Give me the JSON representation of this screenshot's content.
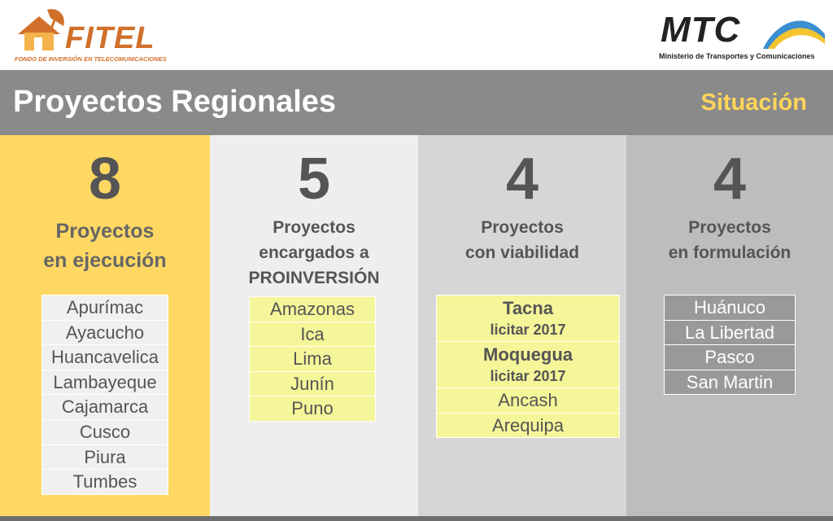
{
  "header": {
    "fitel_wordmark": "FITEL",
    "fitel_tagline": "FONDO DE INVERSIÓN EN TELECOMUNICACIONES",
    "mtc_wordmark": "MTC",
    "mtc_subtitle": "Ministerio de Transportes y Comunicaciones"
  },
  "title": "Proyectos Regionales",
  "subtitle": "Situación",
  "colors": {
    "title_band": "#8a8a8a",
    "subtitle": "#ffd55a",
    "col1_bg": "#ffd863",
    "col2_bg": "#eeeeee",
    "col3_bg": "#d6d6d6",
    "col4_bg": "#bdbdbd",
    "highlight_cell": "#f5f59a",
    "brand_orange": "#d0702a"
  },
  "columns": [
    {
      "count": "8",
      "label_lines": [
        "Proyectos",
        "en ejecución"
      ],
      "items": [
        "Apurímac",
        "Ayacucho",
        "Huancavelica",
        "Lambayeque",
        "Cajamarca",
        "Cusco",
        "Piura",
        "Tumbes"
      ]
    },
    {
      "count": "5",
      "label_lines": [
        "Proyectos",
        "encargados a",
        "PROINVERSIÓN"
      ],
      "items": [
        "Amazonas",
        "Ica",
        "Lima",
        "Junín",
        "Puno"
      ]
    },
    {
      "count": "4",
      "label_lines": [
        "Proyectos",
        "con viabilidad"
      ],
      "items": [
        {
          "name": "Tacna",
          "note": "licitar 2017"
        },
        {
          "name": "Moquegua",
          "note": "licitar 2017"
        },
        {
          "name": "Ancash"
        },
        {
          "name": "Arequipa"
        }
      ]
    },
    {
      "count": "4",
      "label_lines": [
        "Proyectos",
        "en formulación"
      ],
      "items": [
        "Huánuco",
        "La Libertad",
        "Pasco",
        "San Martin"
      ]
    }
  ]
}
